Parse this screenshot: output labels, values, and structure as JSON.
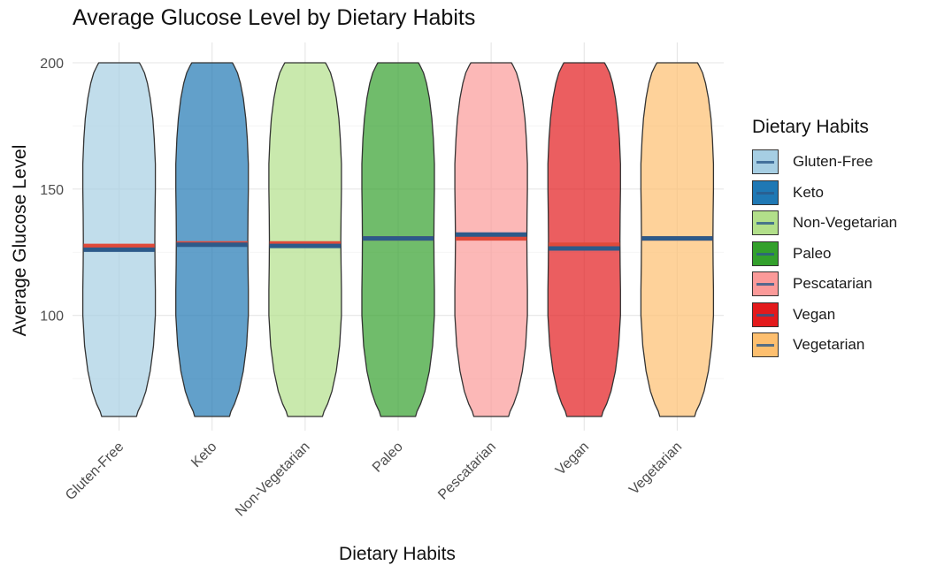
{
  "chart_data": {
    "type": "violin",
    "title": "Average Glucose Level by Dietary Habits",
    "xlabel": "Dietary Habits",
    "ylabel": "Average Glucose Level",
    "ylim": [
      60,
      200
    ],
    "yticks": [
      100,
      150,
      200
    ],
    "grid": true,
    "legend": {
      "title": "Dietary Habits",
      "position": "right"
    },
    "categories": [
      "Gluten-Free",
      "Keto",
      "Non-Vegetarian",
      "Paleo",
      "Pescatarian",
      "Vegan",
      "Vegetarian"
    ],
    "series": [
      {
        "category": "Gluten-Free",
        "fill": "#A6CEE3",
        "median": 126,
        "mean": 127.5
      },
      {
        "category": "Keto",
        "fill": "#1F78B4",
        "median": 128,
        "mean": 128.5
      },
      {
        "category": "Non-Vegetarian",
        "fill": "#B2DF8A",
        "median": 127.5,
        "mean": 128.5
      },
      {
        "category": "Paleo",
        "fill": "#33A02C",
        "median": 130.5,
        "mean": 130.5
      },
      {
        "category": "Pescatarian",
        "fill": "#FB9A99",
        "median": 132,
        "mean": 130.5
      },
      {
        "category": "Vegan",
        "fill": "#E31A1C",
        "median": 126.5,
        "mean": 128
      },
      {
        "category": "Vegetarian",
        "fill": "#FDBF6F",
        "median": 130.5,
        "mean": 130.5
      }
    ],
    "marker_colors": {
      "median": "#2C5A8A",
      "mean": "#E04A3A"
    }
  }
}
